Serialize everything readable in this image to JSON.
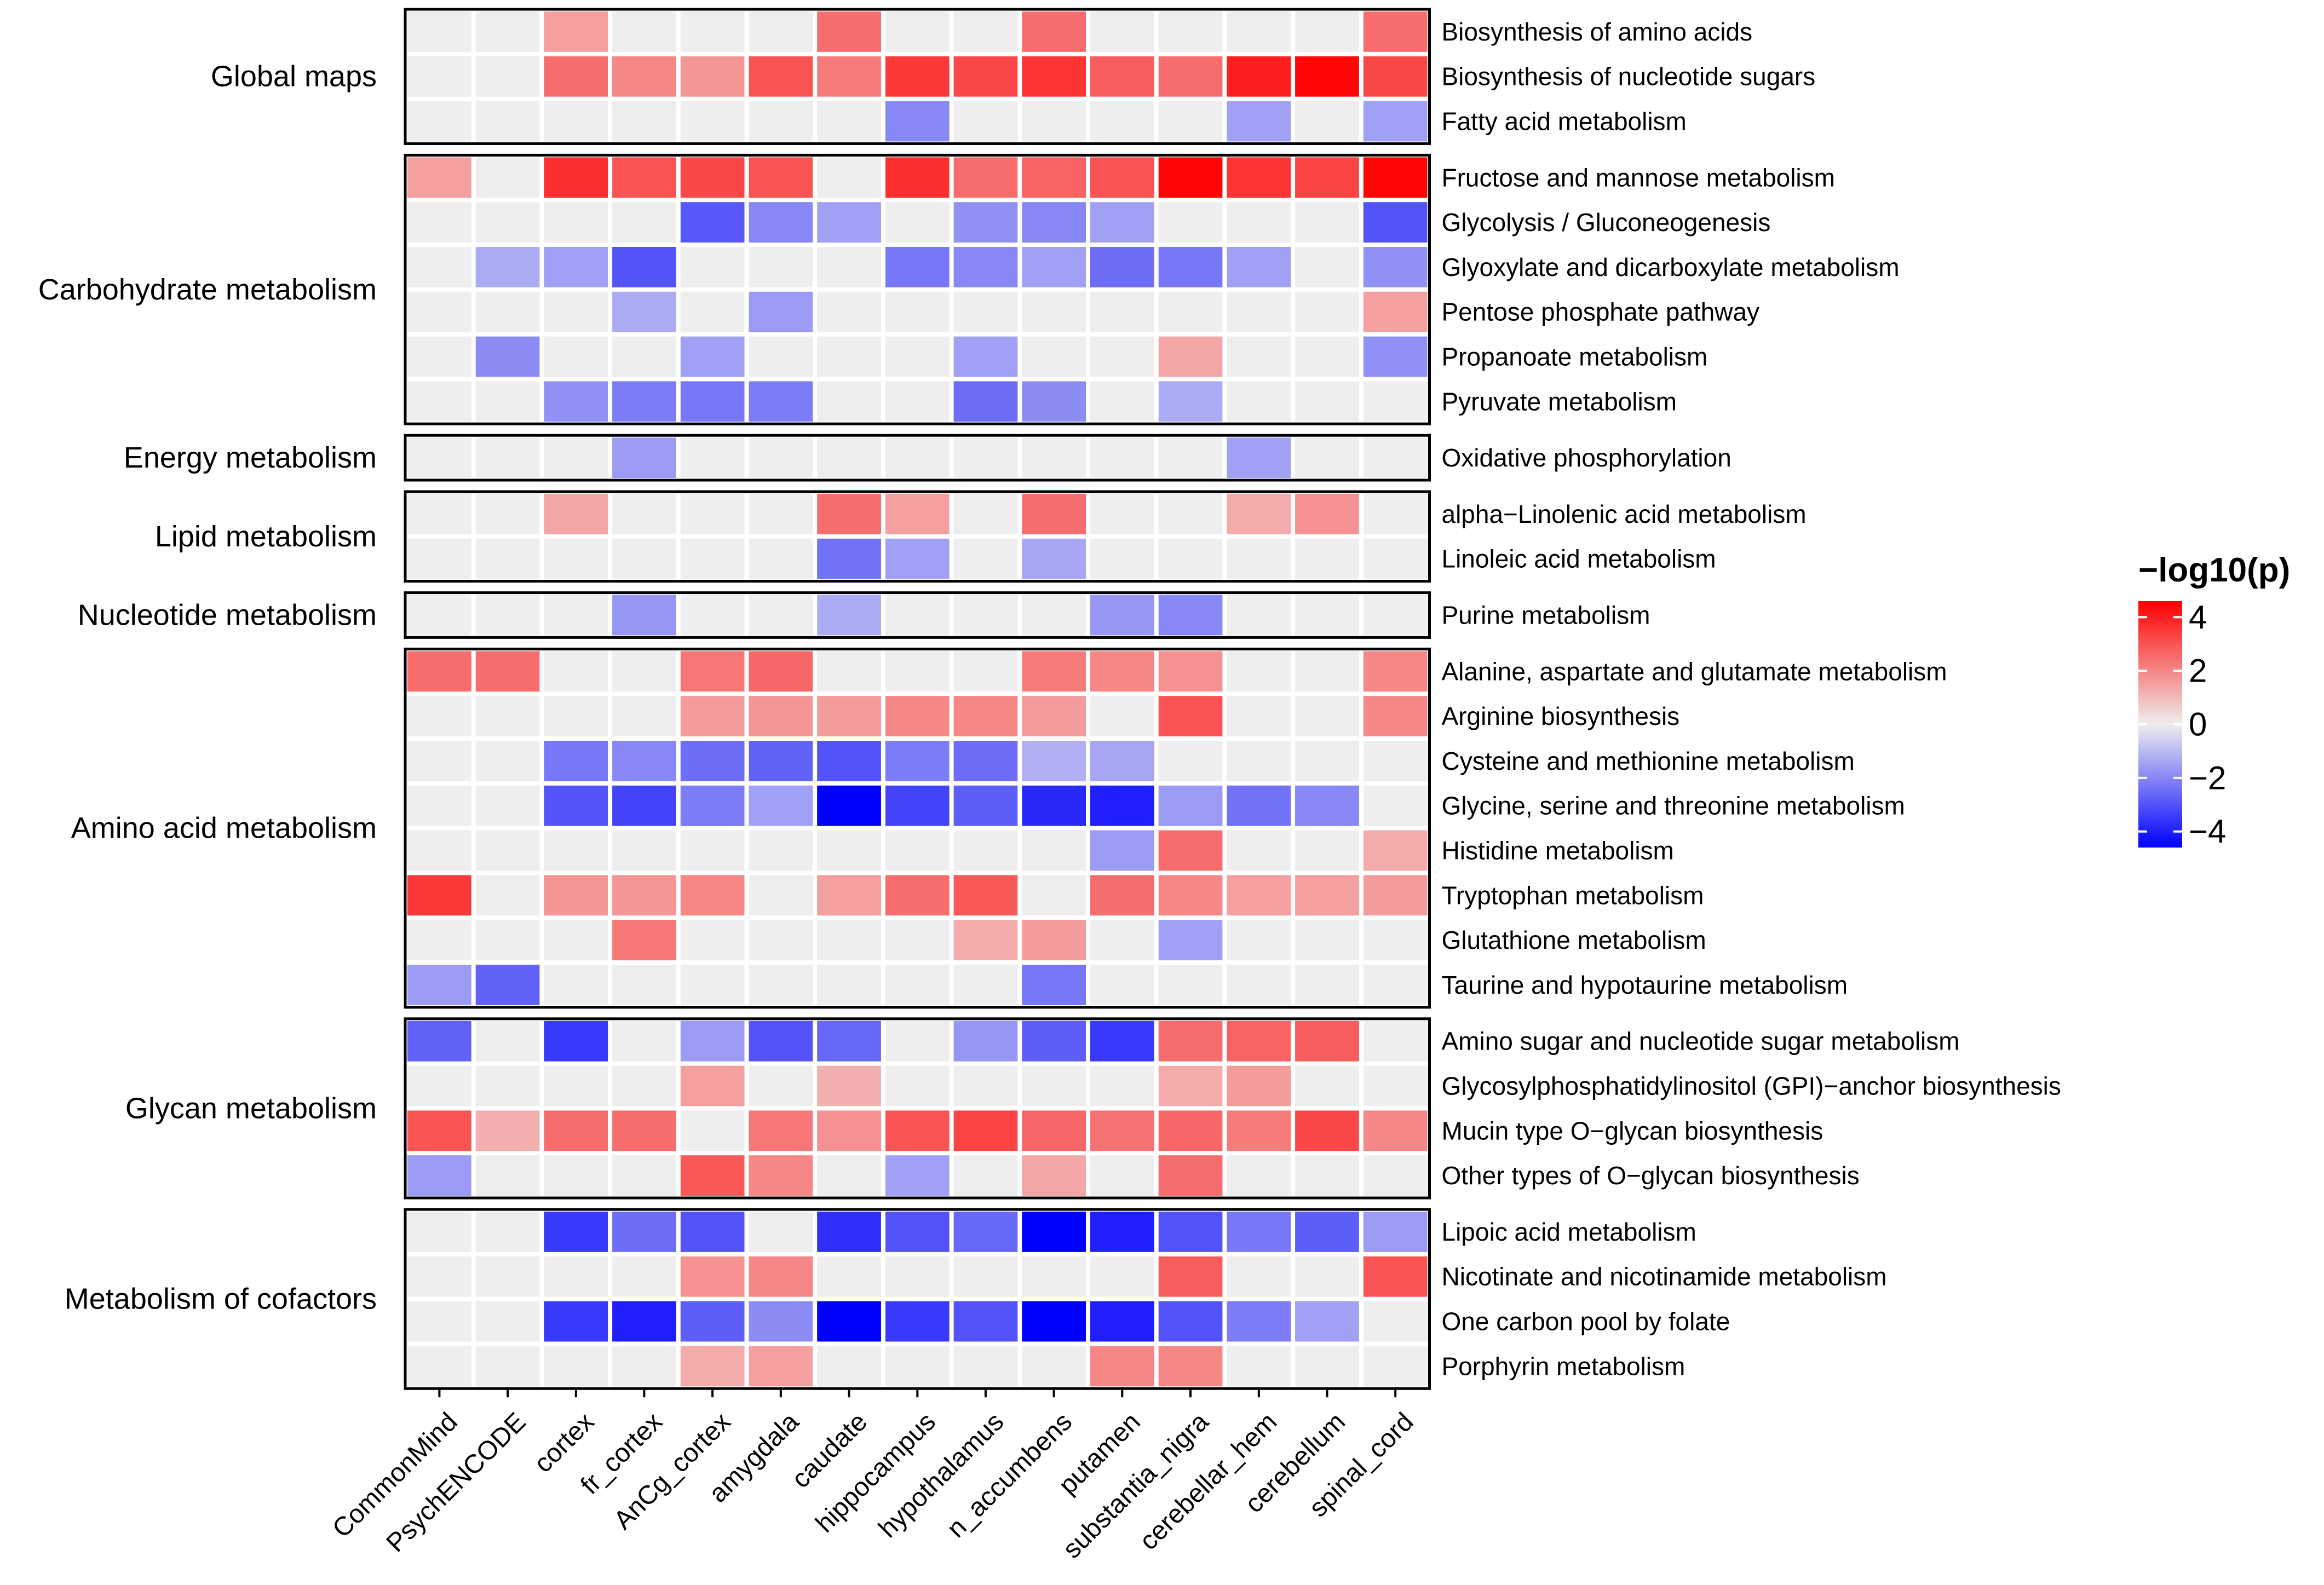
{
  "chart_data": {
    "type": "heatmap",
    "title": "",
    "columns": [
      "CommonMind",
      "PsychENCODE",
      "cortex",
      "fr_cortex",
      "AnCg_cortex",
      "amygdala",
      "caudate",
      "hippocampus",
      "hypothalamus",
      "n_accumbens",
      "putamen",
      "substantia_nigra",
      "cerebellar_hem",
      "cerebellum",
      "spinal_cord"
    ],
    "groups": [
      {
        "name": "Global maps",
        "rows": [
          {
            "label": "Biosynthesis of amino acids",
            "values": [
              0,
              0,
              1.5,
              0,
              0,
              0,
              2.5,
              0,
              0,
              2.5,
              0,
              0,
              0,
              0,
              2.5
            ]
          },
          {
            "label": "Biosynthesis of nucleotide sugars",
            "values": [
              0,
              0,
              2.5,
              2,
              1.7,
              3,
              2.2,
              3.5,
              3.2,
              3.6,
              2.8,
              2.5,
              4,
              4.5,
              3.2
            ]
          },
          {
            "label": "Fatty acid metabolism",
            "values": [
              0,
              0,
              0,
              0,
              0,
              0,
              0,
              -2,
              0,
              0,
              0,
              0,
              -1.5,
              0,
              -1.5
            ]
          }
        ]
      },
      {
        "name": "Carbohydrate metabolism",
        "rows": [
          {
            "label": "Fructose and mannose metabolism",
            "values": [
              1.5,
              0,
              3.7,
              3,
              3.2,
              3,
              0,
              3.7,
              2.5,
              2.7,
              3,
              4.5,
              3.6,
              3.3,
              4.5
            ]
          },
          {
            "label": "Glycolysis / Gluconeogenesis",
            "values": [
              0,
              0,
              0,
              0,
              -2.9,
              -2,
              -1.5,
              0,
              -1.8,
              -2,
              -1.5,
              0,
              0,
              0,
              -3
            ]
          },
          {
            "label": "Glyoxylate and dicarboxylate metabolism",
            "values": [
              0,
              -1.3,
              -1.5,
              -3,
              0,
              0,
              0,
              -2.3,
              -2,
              -1.5,
              -2.5,
              -2.3,
              -1.5,
              0,
              -1.8
            ]
          },
          {
            "label": "Pentose phosphate pathway",
            "values": [
              0,
              0,
              0,
              -1.3,
              0,
              -1.6,
              0,
              0,
              0,
              0,
              0,
              0,
              0,
              0,
              1.5
            ]
          },
          {
            "label": "Propanoate metabolism",
            "values": [
              0,
              -1.9,
              0,
              0,
              -1.5,
              0,
              0,
              0,
              -1.5,
              0,
              0,
              1.4,
              0,
              0,
              -1.8
            ]
          },
          {
            "label": "Pyruvate metabolism",
            "values": [
              0,
              0,
              -1.8,
              -2.2,
              -2.3,
              -2.2,
              0,
              0,
              -2.5,
              -1.9,
              0,
              -1.3,
              0,
              0,
              0
            ]
          }
        ]
      },
      {
        "name": "Energy metabolism",
        "rows": [
          {
            "label": "Oxidative phosphorylation",
            "values": [
              0,
              0,
              0,
              -1.6,
              0,
              0,
              0,
              0,
              0,
              0,
              0,
              0,
              -1.5,
              0,
              0
            ]
          }
        ]
      },
      {
        "name": "Lipid metabolism",
        "rows": [
          {
            "label": "alpha−Linolenic acid metabolism",
            "values": [
              0,
              0,
              1.4,
              0,
              0,
              0,
              2.5,
              1.5,
              0,
              2.5,
              0,
              0,
              1.3,
              1.8,
              0
            ]
          },
          {
            "label": "Linoleic acid metabolism",
            "values": [
              0,
              0,
              0,
              0,
              0,
              0,
              -2.4,
              -1.5,
              0,
              -1.4,
              0,
              0,
              0,
              0,
              0
            ]
          }
        ]
      },
      {
        "name": "Nucleotide metabolism",
        "rows": [
          {
            "label": "Purine metabolism",
            "values": [
              0,
              0,
              0,
              -1.7,
              0,
              0,
              -1.3,
              0,
              0,
              0,
              -1.7,
              -2,
              0,
              0,
              0
            ]
          }
        ]
      },
      {
        "name": "Amino acid metabolism",
        "rows": [
          {
            "label": "Alanine, aspartate and glutamate metabolism",
            "values": [
              2.5,
              2.5,
              0,
              0,
              2.3,
              2.6,
              0,
              0,
              0,
              2.2,
              2,
              1.8,
              0,
              0,
              2
            ]
          },
          {
            "label": "Arginine biosynthesis",
            "values": [
              0,
              0,
              0,
              0,
              1.6,
              1.7,
              1.6,
              2,
              2,
              1.6,
              0,
              3,
              0,
              0,
              2
            ]
          },
          {
            "label": "Cysteine and methionine metabolism",
            "values": [
              0,
              0,
              -2.3,
              -2,
              -2.5,
              -2.7,
              -3,
              -2.2,
              -2.5,
              -1.2,
              -1.4,
              0,
              0,
              0,
              0
            ]
          },
          {
            "label": "Glycine, serine and threonine metabolism",
            "values": [
              0,
              0,
              -3,
              -3.3,
              -2.2,
              -1.5,
              -4.6,
              -3.3,
              -2.8,
              -3.8,
              -4,
              -1.6,
              -2.4,
              -2,
              0
            ]
          },
          {
            "label": "Histidine metabolism",
            "values": [
              0,
              0,
              0,
              0,
              0,
              0,
              0,
              0,
              0,
              0,
              -1.6,
              2.5,
              0,
              0,
              1.3
            ]
          },
          {
            "label": "Tryptophan metabolism",
            "values": [
              3.5,
              0,
              1.7,
              1.7,
              2,
              0,
              1.5,
              2.5,
              2.9,
              0,
              2.5,
              2,
              1.5,
              1.5,
              1.6
            ]
          },
          {
            "label": "Glutathione metabolism",
            "values": [
              0,
              0,
              0,
              2.3,
              0,
              0,
              0,
              0,
              1.3,
              1.6,
              0,
              -1.5,
              0,
              0,
              0
            ]
          },
          {
            "label": "Taurine and hypotaurine metabolism",
            "values": [
              -1.6,
              -2.7,
              0,
              0,
              0,
              0,
              0,
              0,
              0,
              -2.3,
              0,
              0,
              0,
              0,
              0
            ]
          }
        ]
      },
      {
        "name": "Glycan metabolism",
        "rows": [
          {
            "label": "Amino sugar and nucleotide sugar metabolism",
            "values": [
              -2.7,
              0,
              -3.5,
              0,
              -1.6,
              -3,
              -2.6,
              0,
              -1.7,
              -2.8,
              -3.5,
              2.5,
              2.7,
              2.8,
              0
            ]
          },
          {
            "label": "Glycosylphosphatidylinositol (GPI)−anchor biosynthesis",
            "values": [
              0,
              0,
              0,
              0,
              1.5,
              0,
              1.2,
              0,
              0,
              0,
              0,
              1.3,
              1.6,
              0,
              0
            ]
          },
          {
            "label": "Mucin type O−glycan biosynthesis",
            "values": [
              3,
              1.2,
              2.5,
              2.5,
              0,
              2.3,
              1.8,
              3,
              3.3,
              2.6,
              2.4,
              2.6,
              2.2,
              3.2,
              2
            ]
          },
          {
            "label": "Other types of O−glycan biosynthesis",
            "values": [
              -1.6,
              0,
              0,
              0,
              2.9,
              2,
              0,
              -1.5,
              0,
              1.4,
              0,
              2.5,
              0,
              0,
              0
            ]
          }
        ]
      },
      {
        "name": "Metabolism of cofactors",
        "rows": [
          {
            "label": "Lipoic acid metabolism",
            "values": [
              0,
              0,
              -3.5,
              -2.5,
              -3,
              0,
              -3.7,
              -3,
              -2.6,
              -4.6,
              -4,
              -3,
              -2.3,
              -2.8,
              -1.6
            ]
          },
          {
            "label": "Nicotinate and nicotinamide metabolism",
            "values": [
              0,
              0,
              0,
              0,
              1.8,
              2,
              0,
              0,
              0,
              0,
              0,
              2.8,
              0,
              0,
              3
            ]
          },
          {
            "label": "One carbon pool by folate",
            "values": [
              0,
              0,
              -3.5,
              -4,
              -2.8,
              -1.9,
              -4.6,
              -3.5,
              -3,
              -4.6,
              -4,
              -3,
              -2.2,
              -1.5,
              0
            ]
          },
          {
            "label": "Porphyrin metabolism",
            "values": [
              0,
              0,
              0,
              0,
              1.3,
              1.5,
              0,
              0,
              0,
              0,
              2,
              2,
              0,
              0,
              0
            ]
          }
        ]
      }
    ],
    "legend": {
      "title": "−log10(p)",
      "ticks": [
        4,
        2,
        0,
        -2,
        -4
      ],
      "tick_labels": [
        "4",
        "2",
        "0",
        "−2",
        "−4"
      ],
      "range": [
        -4.6,
        4.6
      ],
      "low_color": "#0000ff",
      "mid_color": "#eeeeee",
      "high_color": "#ff0000",
      "position": "right"
    }
  }
}
